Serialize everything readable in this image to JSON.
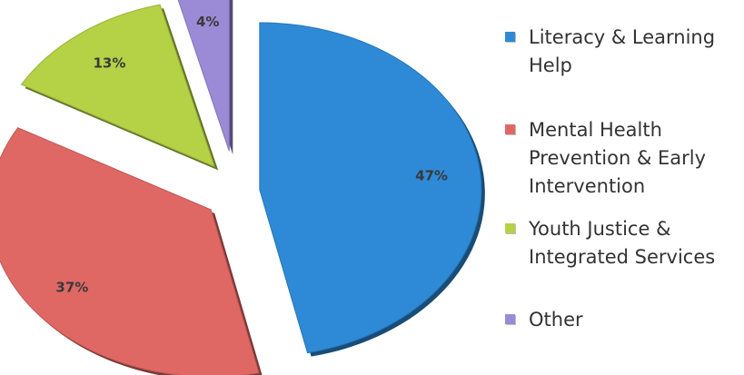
{
  "chart_data": {
    "type": "pie",
    "title": "",
    "slices": [
      {
        "label": "Literacy & Learning Help",
        "value": 47,
        "display": "47%",
        "color": "#2e8ad6"
      },
      {
        "label": "Mental Health Prevention & Early Intervention",
        "value": 37,
        "display": "37%",
        "color": "#e06864"
      },
      {
        "label": "Youth Justice & Integrated Services",
        "value": 13,
        "display": "13%",
        "color": "#b5d146"
      },
      {
        "label": "Other",
        "value": 4,
        "display": "4%",
        "color": "#9b8ad6"
      }
    ],
    "legend": {
      "position": "right",
      "items": [
        {
          "lines": [
            "Literacy & Learning",
            "Help"
          ],
          "color": "#2e8ad6"
        },
        {
          "lines": [
            "Mental Health",
            "Prevention & Early",
            "Intervention"
          ],
          "color": "#e06864"
        },
        {
          "lines": [
            "Youth Justice &",
            "Integrated Services"
          ],
          "color": "#b5d146"
        },
        {
          "lines": [
            "Other"
          ],
          "color": "#9b8ad6"
        }
      ]
    },
    "exploded": true,
    "style": "3d-tilted"
  }
}
